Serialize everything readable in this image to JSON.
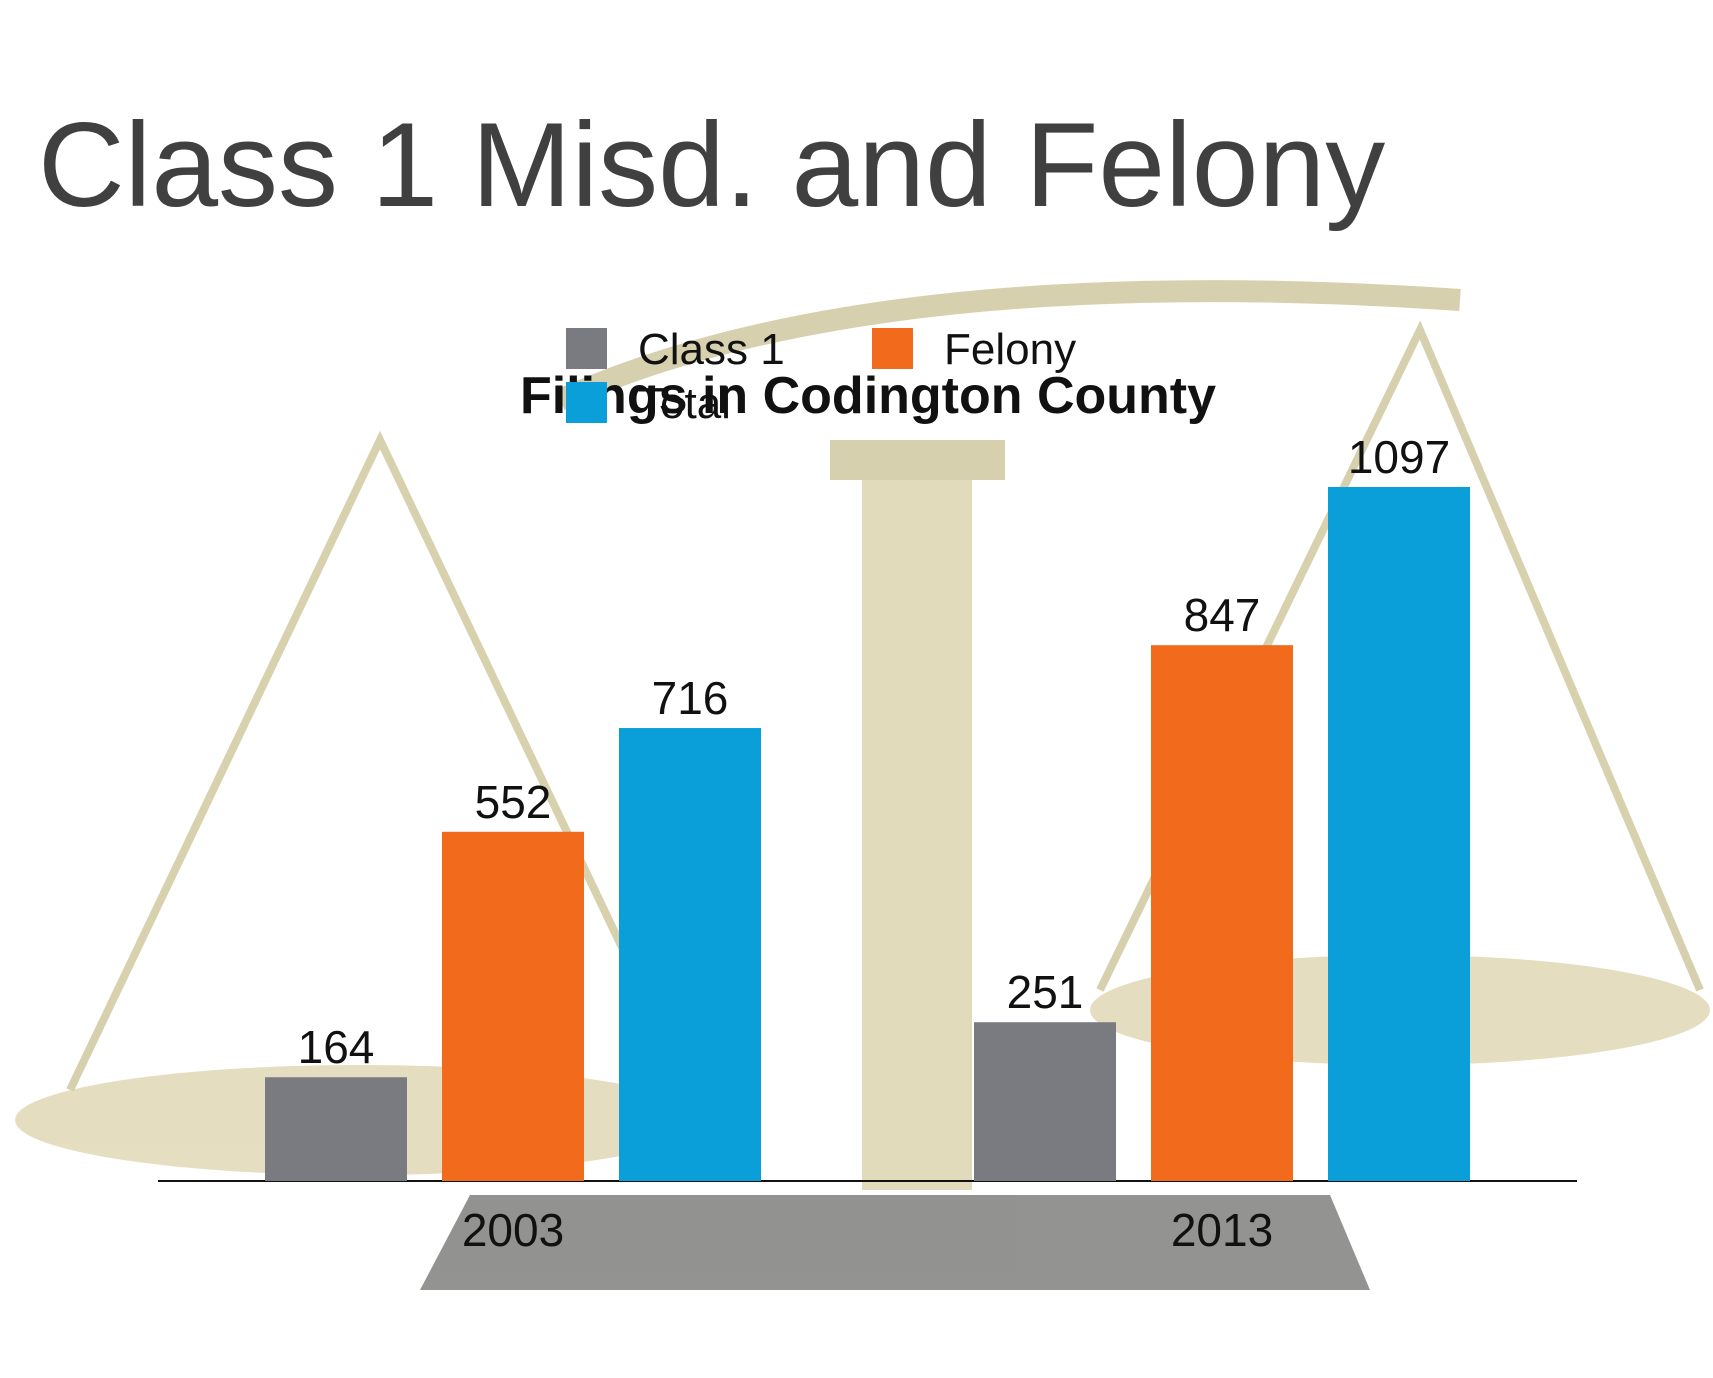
{
  "chart_data": {
    "type": "bar",
    "slide_title": "Class 1 Misd. and Felony",
    "title": "Filings in Codington County",
    "categories": [
      "2003",
      "2013"
    ],
    "series": [
      {
        "name": "Class 1",
        "color": "#7a7b80",
        "values": [
          164,
          251
        ]
      },
      {
        "name": "Felony",
        "color": "#f26b1d",
        "values": [
          552,
          847
        ]
      },
      {
        "name": "Total",
        "color": "#0a9fd8",
        "values": [
          716,
          1097
        ]
      }
    ],
    "legend": "top"
  }
}
